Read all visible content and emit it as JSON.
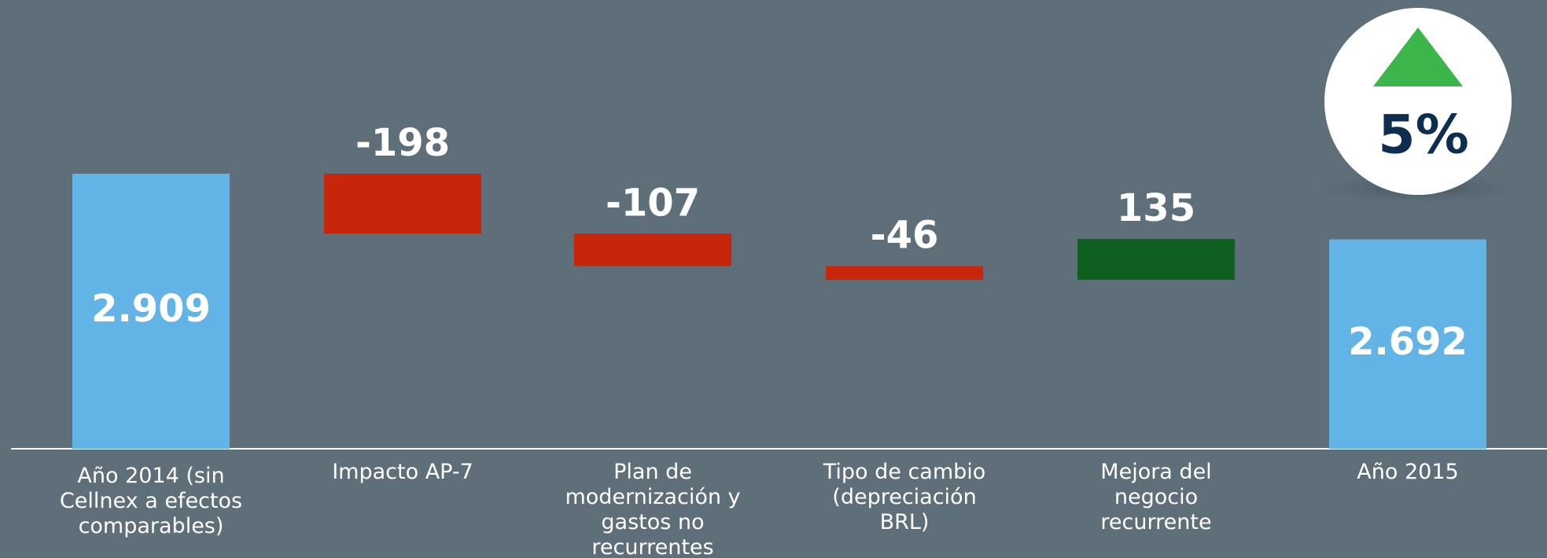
{
  "chart_data": {
    "type": "waterfall",
    "categories": [
      "Año 2014 (sin Cellnex a efectos comparables)",
      "Impacto AP-7",
      "Plan de modernización y gastos no recurrentes",
      "Tipo de cambio (depreciación BRL)",
      "Mejora del negocio recurrente",
      "Año 2015"
    ],
    "values": [
      2909,
      -198,
      -107,
      -46,
      135,
      2692
    ],
    "value_labels": [
      "2.909",
      "-198",
      "-107",
      "-46",
      "135",
      "2.692"
    ],
    "total": [
      true,
      false,
      false,
      false,
      false,
      true
    ],
    "colors": {
      "total": "#62b4e6",
      "negative": "#c8260a",
      "positive": "#0f6020"
    },
    "ylim": [
      2000,
      3000
    ],
    "annotation": "5%"
  }
}
